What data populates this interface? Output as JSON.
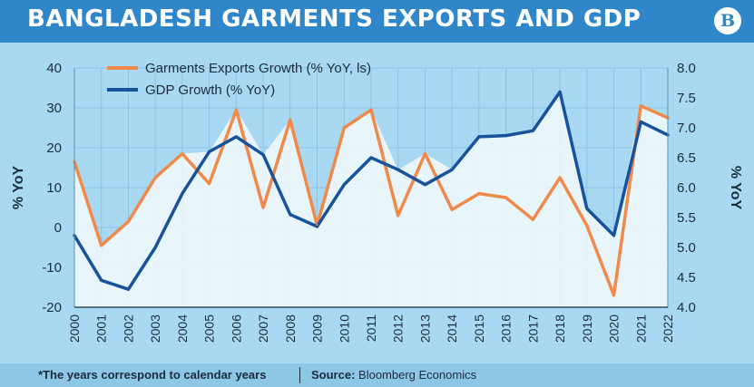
{
  "header": {
    "title": "BANGLADESH GARMENTS EXPORTS AND GDP",
    "logo_letter": "B"
  },
  "footer": {
    "note": "*The years correspond to calendar years",
    "source_label": "Source:",
    "source_value": "Bloomberg Economics"
  },
  "colors": {
    "exports": "#f0894a",
    "gdp": "#16539c",
    "fill": "#f3f9fd",
    "background": "#a9d9f2",
    "header": "#2f86c9"
  },
  "chart_data": {
    "type": "line",
    "x": [
      "2000",
      "2001",
      "2002",
      "2003",
      "2004",
      "2005",
      "2006",
      "2007",
      "2008",
      "2009",
      "2010",
      "2011",
      "2012",
      "2013",
      "2014",
      "2015",
      "2016",
      "2017",
      "2018",
      "2019",
      "2020",
      "2021",
      "2022"
    ],
    "series": [
      {
        "name": "Garments Exports Growth (% YoY, ls)",
        "axis": "left",
        "values": [
          16.5,
          -4.5,
          1.5,
          12.5,
          18.5,
          11,
          29.5,
          5,
          27,
          0.5,
          25,
          29.5,
          3,
          18.5,
          4.5,
          8.5,
          7.5,
          2,
          12.5,
          0.5,
          -17,
          30.5,
          27.5
        ]
      },
      {
        "name": "GDP Growth (% YoY)",
        "axis": "right",
        "values": [
          5.2,
          4.45,
          4.3,
          5.0,
          5.9,
          6.6,
          6.85,
          6.55,
          5.55,
          5.35,
          6.05,
          6.5,
          6.3,
          6.05,
          6.3,
          6.85,
          6.87,
          6.95,
          7.6,
          5.65,
          5.2,
          7.1,
          6.88
        ]
      }
    ],
    "ylabel_left": "% YoY",
    "ylabel_right": "% YoY",
    "ylim_left": [
      -20,
      40
    ],
    "ylim_right": [
      4.0,
      8.0
    ],
    "yticks_left": [
      "-20",
      "-10",
      "0",
      "10",
      "20",
      "30",
      "40"
    ],
    "yticks_right": [
      "4.0",
      "4.5",
      "5.0",
      "5.5",
      "6.0",
      "6.5",
      "7.0",
      "7.5",
      "8.0"
    ],
    "grid": true,
    "legend_position": "top-left"
  }
}
